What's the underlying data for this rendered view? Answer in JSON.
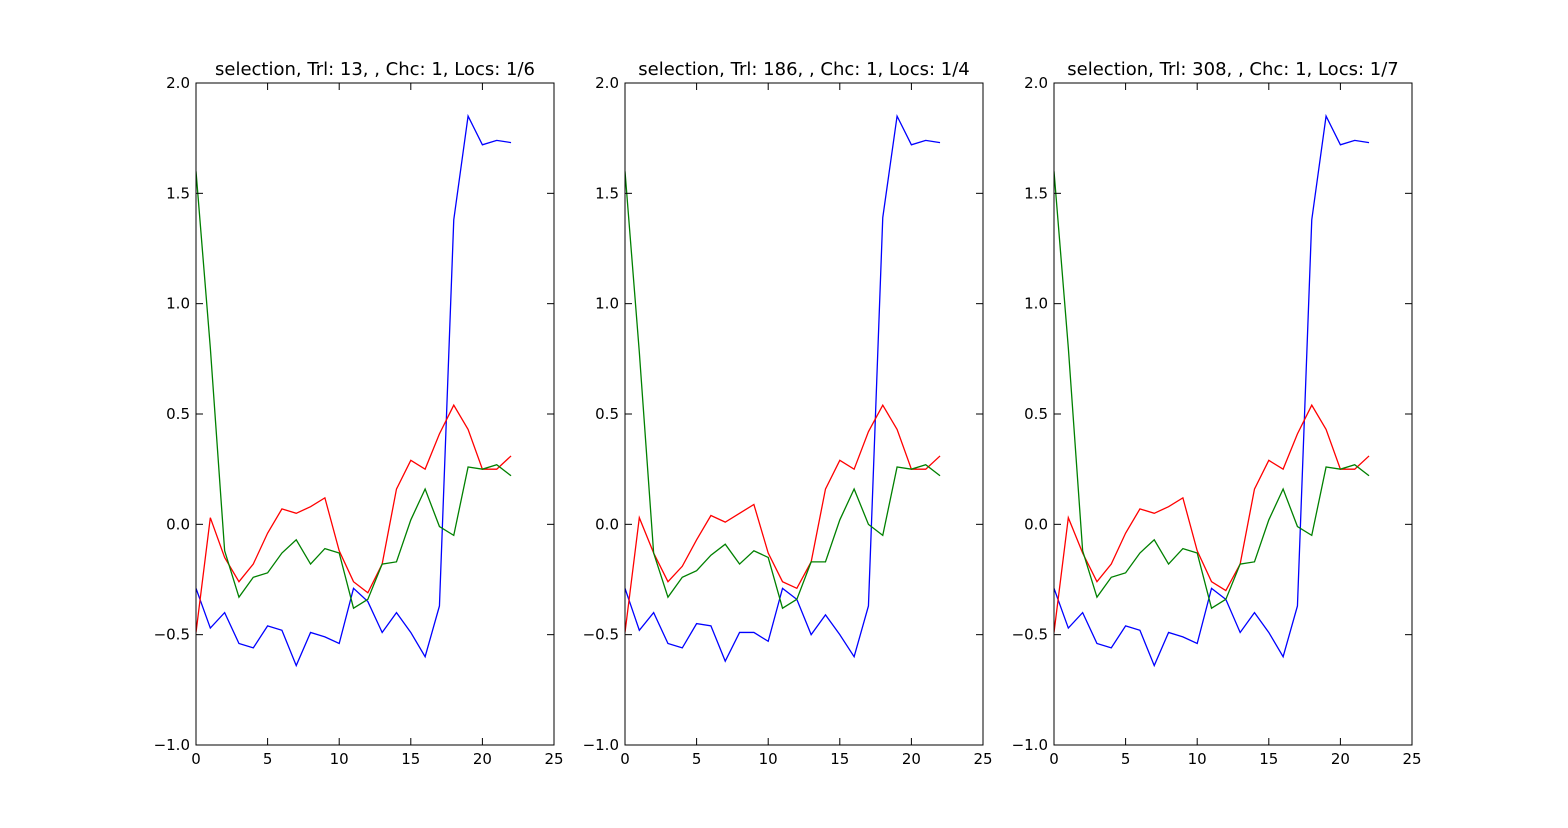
{
  "chart_data": [
    {
      "type": "line",
      "title": "selection, Trl: 13, , Chc: 1, Locs: 1/6",
      "xlim": [
        0,
        25
      ],
      "ylim": [
        -1.0,
        2.0
      ],
      "xticks": [
        0,
        5,
        10,
        15,
        20,
        25
      ],
      "yticks": [
        -1.0,
        -0.5,
        0.0,
        0.5,
        1.0,
        1.5,
        2.0
      ],
      "xtick_labels": [
        "0",
        "5",
        "10",
        "15",
        "20",
        "25"
      ],
      "ytick_labels": [
        "−1.0",
        "−0.5",
        "0.0",
        "0.5",
        "1.0",
        "1.5",
        "2.0"
      ],
      "grid": false,
      "x": [
        0,
        1,
        2,
        3,
        4,
        5,
        6,
        7,
        8,
        9,
        10,
        11,
        12,
        13,
        14,
        15,
        16,
        17,
        18,
        19,
        20,
        21,
        22
      ],
      "series": [
        {
          "color": "#0000ff",
          "values": [
            -0.29,
            -0.47,
            -0.4,
            -0.54,
            -0.56,
            -0.46,
            -0.48,
            -0.64,
            -0.49,
            -0.51,
            -0.54,
            -0.29,
            -0.35,
            -0.49,
            -0.4,
            -0.49,
            -0.6,
            -0.37,
            1.38,
            1.85,
            1.72,
            1.74,
            1.73
          ]
        },
        {
          "color": "#ff0000",
          "values": [
            -0.49,
            0.03,
            -0.15,
            -0.26,
            -0.18,
            -0.04,
            0.07,
            0.05,
            0.08,
            0.12,
            -0.12,
            -0.26,
            -0.31,
            -0.18,
            0.16,
            0.29,
            0.25,
            0.41,
            0.54,
            0.43,
            0.25,
            0.25,
            0.31
          ]
        },
        {
          "color": "#008000",
          "values": [
            1.6,
            0.8,
            -0.12,
            -0.33,
            -0.24,
            -0.22,
            -0.13,
            -0.07,
            -0.18,
            -0.11,
            -0.13,
            -0.38,
            -0.34,
            -0.18,
            -0.17,
            0.02,
            0.16,
            -0.01,
            -0.05,
            0.26,
            0.25,
            0.27,
            0.22
          ]
        }
      ]
    },
    {
      "type": "line",
      "title": "selection, Trl: 186, , Chc: 1, Locs: 1/4",
      "xlim": [
        0,
        25
      ],
      "ylim": [
        -1.0,
        2.0
      ],
      "xticks": [
        0,
        5,
        10,
        15,
        20,
        25
      ],
      "yticks": [
        -1.0,
        -0.5,
        0.0,
        0.5,
        1.0,
        1.5,
        2.0
      ],
      "xtick_labels": [
        "0",
        "5",
        "10",
        "15",
        "20",
        "25"
      ],
      "ytick_labels": [
        "−1.0",
        "−0.5",
        "0.0",
        "0.5",
        "1.0",
        "1.5",
        "2.0"
      ],
      "grid": false,
      "x": [
        0,
        1,
        2,
        3,
        4,
        5,
        6,
        7,
        8,
        9,
        10,
        11,
        12,
        13,
        14,
        15,
        16,
        17,
        18,
        19,
        20,
        21,
        22
      ],
      "series": [
        {
          "color": "#0000ff",
          "values": [
            -0.29,
            -0.48,
            -0.4,
            -0.54,
            -0.56,
            -0.45,
            -0.46,
            -0.62,
            -0.49,
            -0.49,
            -0.53,
            -0.29,
            -0.34,
            -0.5,
            -0.41,
            -0.5,
            -0.6,
            -0.37,
            1.39,
            1.85,
            1.72,
            1.74,
            1.73
          ]
        },
        {
          "color": "#ff0000",
          "values": [
            -0.49,
            0.03,
            -0.13,
            -0.26,
            -0.19,
            -0.07,
            0.04,
            0.01,
            0.05,
            0.09,
            -0.13,
            -0.26,
            -0.29,
            -0.17,
            0.16,
            0.29,
            0.25,
            0.42,
            0.54,
            0.43,
            0.25,
            0.25,
            0.31
          ]
        },
        {
          "color": "#008000",
          "values": [
            1.6,
            0.78,
            -0.13,
            -0.33,
            -0.24,
            -0.21,
            -0.14,
            -0.09,
            -0.18,
            -0.12,
            -0.15,
            -0.38,
            -0.34,
            -0.17,
            -0.17,
            0.02,
            0.16,
            0.0,
            -0.05,
            0.26,
            0.25,
            0.27,
            0.22
          ]
        }
      ]
    },
    {
      "type": "line",
      "title": "selection, Trl: 308, , Chc: 1, Locs: 1/7",
      "xlim": [
        0,
        25
      ],
      "ylim": [
        -1.0,
        2.0
      ],
      "xticks": [
        0,
        5,
        10,
        15,
        20,
        25
      ],
      "yticks": [
        -1.0,
        -0.5,
        0.0,
        0.5,
        1.0,
        1.5,
        2.0
      ],
      "xtick_labels": [
        "0",
        "5",
        "10",
        "15",
        "20",
        "25"
      ],
      "ytick_labels": [
        "−1.0",
        "−0.5",
        "0.0",
        "0.5",
        "1.0",
        "1.5",
        "2.0"
      ],
      "grid": false,
      "x": [
        0,
        1,
        2,
        3,
        4,
        5,
        6,
        7,
        8,
        9,
        10,
        11,
        12,
        13,
        14,
        15,
        16,
        17,
        18,
        19,
        20,
        21,
        22
      ],
      "series": [
        {
          "color": "#0000ff",
          "values": [
            -0.29,
            -0.47,
            -0.4,
            -0.54,
            -0.56,
            -0.46,
            -0.48,
            -0.64,
            -0.49,
            -0.51,
            -0.54,
            -0.29,
            -0.34,
            -0.49,
            -0.4,
            -0.49,
            -0.6,
            -0.37,
            1.38,
            1.85,
            1.72,
            1.74,
            1.73
          ]
        },
        {
          "color": "#ff0000",
          "values": [
            -0.49,
            0.03,
            -0.13,
            -0.26,
            -0.18,
            -0.04,
            0.07,
            0.05,
            0.08,
            0.12,
            -0.12,
            -0.26,
            -0.3,
            -0.18,
            0.16,
            0.29,
            0.25,
            0.41,
            0.54,
            0.43,
            0.25,
            0.25,
            0.31
          ]
        },
        {
          "color": "#008000",
          "values": [
            1.6,
            0.8,
            -0.12,
            -0.33,
            -0.24,
            -0.22,
            -0.13,
            -0.07,
            -0.18,
            -0.11,
            -0.13,
            -0.38,
            -0.34,
            -0.18,
            -0.17,
            0.02,
            0.16,
            -0.01,
            -0.05,
            0.26,
            0.25,
            0.27,
            0.22
          ]
        }
      ]
    }
  ]
}
